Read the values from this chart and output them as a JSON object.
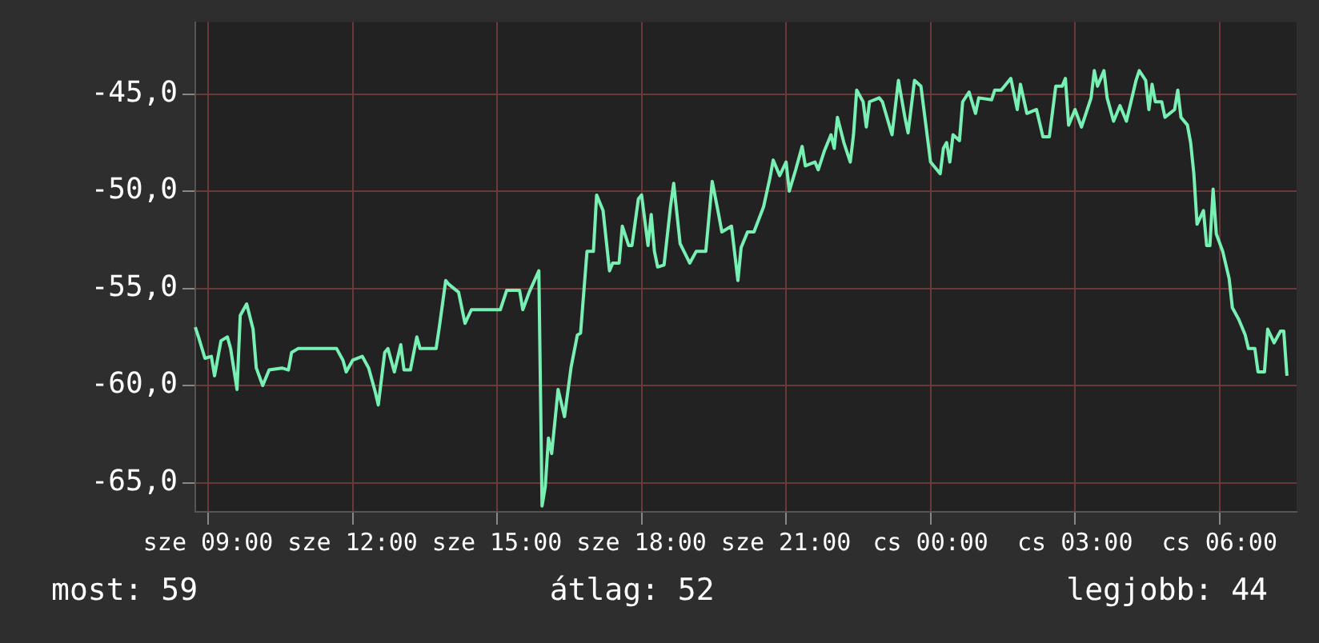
{
  "chart_data": {
    "type": "line",
    "categories": [
      null,
      null,
      null,
      null,
      "sze 09:00",
      null,
      null,
      null,
      null,
      null,
      null,
      null,
      null,
      null,
      null,
      null,
      null,
      null,
      null,
      null,
      null,
      null,
      null,
      null,
      null,
      null,
      null,
      null,
      null,
      null,
      null,
      null,
      null,
      null,
      null,
      null,
      null,
      null,
      null,
      null,
      null,
      null,
      null,
      null,
      null,
      null,
      null,
      null,
      null,
      "sze 12:00",
      null,
      null,
      null,
      null,
      null,
      null,
      null,
      null,
      null,
      null,
      null,
      null,
      null,
      null,
      null,
      null,
      null,
      null,
      null,
      null,
      null,
      null,
      null,
      null,
      null,
      null,
      null,
      null,
      null,
      null,
      null,
      null,
      null,
      null,
      null,
      null,
      null,
      null,
      null,
      null,
      null,
      null,
      null,
      null,
      "sze 15:00",
      null,
      null,
      null,
      null,
      null,
      null,
      null,
      null,
      null,
      null,
      null,
      null,
      null,
      null,
      null,
      null,
      null,
      null,
      null,
      null,
      null,
      null,
      null,
      null,
      null,
      null,
      null,
      null,
      null,
      null,
      null,
      null,
      null,
      null,
      null,
      null,
      null,
      null,
      null,
      null,
      null,
      null,
      null,
      null,
      "sze 18:00",
      null,
      null,
      null,
      null,
      null,
      null,
      null,
      null,
      null,
      null,
      null,
      null,
      null,
      null,
      null,
      null,
      null,
      null,
      null,
      null,
      null,
      null,
      null,
      null,
      null,
      null,
      null,
      null,
      null,
      null,
      null,
      null,
      null,
      null,
      null,
      null,
      null,
      null,
      null,
      null,
      null,
      null,
      null,
      null,
      "sze 21:00",
      null,
      null,
      null,
      null,
      null,
      null,
      null,
      null,
      null,
      null,
      null,
      null,
      null,
      null,
      null,
      null,
      null,
      null,
      null,
      null,
      null,
      null,
      null,
      null,
      null,
      null,
      null,
      null,
      null,
      null,
      null,
      null,
      null,
      null,
      null,
      null,
      null,
      null,
      null,
      null,
      null,
      null,
      null,
      null,
      "cs 00:00",
      null,
      null,
      null,
      null,
      null,
      null,
      null,
      null,
      null,
      null,
      null,
      null,
      null,
      null,
      null,
      null,
      null,
      null,
      null,
      null,
      null,
      null,
      null,
      null,
      null,
      null,
      null,
      null,
      null,
      null,
      null,
      null,
      null,
      null,
      null,
      null,
      null,
      null,
      null,
      null,
      null,
      null,
      null,
      null,
      "cs 03:00",
      null,
      null,
      null,
      null,
      null,
      null,
      null,
      null,
      null,
      null,
      null,
      null,
      null,
      null,
      null,
      null,
      null,
      null,
      null,
      null,
      null,
      null,
      null,
      null,
      null,
      null,
      null,
      null,
      null,
      null,
      null,
      null,
      null,
      null,
      null,
      null,
      null,
      null,
      null,
      null,
      null,
      null,
      null,
      null,
      "cs 06:00",
      null,
      null,
      null,
      null,
      null,
      null,
      null,
      null,
      null,
      null,
      null,
      null,
      null,
      null,
      null,
      null,
      null,
      null,
      null,
      null,
      null,
      null,
      null,
      null
    ],
    "series": [
      {
        "color": "#78f0b4",
        "values": [
          -57.0,
          -57.5,
          null,
          -58.6,
          null,
          -58.5,
          -59.5,
          null,
          -57.7,
          null,
          -57.5,
          -58.1,
          null,
          -60.2,
          -56.4,
          null,
          -55.8,
          null,
          -57.1,
          -59.1,
          null,
          -60.0,
          null,
          -59.2,
          null,
          null,
          null,
          -59.1,
          null,
          -59.2,
          -58.3,
          null,
          -58.1,
          null,
          null,
          null,
          null,
          null,
          null,
          null,
          null,
          null,
          null,
          null,
          -58.1,
          null,
          -58.7,
          -59.3,
          null,
          -58.7,
          null,
          null,
          -58.5,
          null,
          -59.1,
          null,
          -60.3,
          -61.0,
          null,
          -58.3,
          -58.1,
          null,
          -59.3,
          null,
          -57.9,
          -59.2,
          null,
          -59.2,
          null,
          -57.5,
          -58.1,
          null,
          null,
          null,
          null,
          -58.1,
          -57.0,
          null,
          -54.6,
          -54.8,
          null,
          null,
          -55.2,
          null,
          -56.8,
          null,
          -56.1,
          null,
          null,
          null,
          null,
          null,
          null,
          null,
          null,
          -56.1,
          null,
          -55.1,
          null,
          null,
          null,
          -55.1,
          -56.1,
          null,
          -55.2,
          null,
          null,
          -54.1,
          -66.2,
          -65.2,
          -62.7,
          -63.5,
          null,
          -60.2,
          null,
          -61.6,
          null,
          -59.1,
          null,
          -57.4,
          -57.3,
          null,
          -53.1,
          null,
          -53.1,
          -50.2,
          null,
          -51.0,
          null,
          -54.1,
          -53.7,
          null,
          -53.7,
          -51.8,
          null,
          -52.8,
          -52.8,
          null,
          -50.4,
          -50.2,
          null,
          -52.8,
          -51.2,
          -53.1,
          -53.9,
          null,
          -53.8,
          null,
          -50.8,
          -49.6,
          null,
          -52.7,
          null,
          null,
          -53.7,
          null,
          -53.1,
          null,
          null,
          -53.1,
          null,
          -49.5,
          null,
          -51.2,
          -52.1,
          null,
          null,
          -51.8,
          null,
          -54.6,
          -52.9,
          null,
          -52.1,
          null,
          -52.1,
          null,
          null,
          -50.8,
          null,
          -49.3,
          -48.4,
          null,
          -49.2,
          null,
          -48.5,
          -50.0,
          null,
          -48.9,
          null,
          -47.7,
          -48.7,
          null,
          null,
          -48.5,
          -48.9,
          null,
          -47.9,
          null,
          -47.1,
          -47.8,
          -46.2,
          null,
          -47.5,
          null,
          -48.5,
          -47.1,
          -44.8,
          null,
          -45.4,
          -46.7,
          -45.4,
          null,
          null,
          -45.2,
          -45.4,
          null,
          null,
          -47.1,
          null,
          -44.3,
          null,
          -46.2,
          -47.0,
          null,
          -44.3,
          null,
          -44.6,
          null,
          null,
          -48.5,
          null,
          null,
          -49.1,
          -47.8,
          -47.5,
          -48.5,
          -47.1,
          null,
          -47.4,
          -45.4,
          null,
          -44.9,
          null,
          -46.0,
          -45.2,
          null,
          null,
          null,
          -45.3,
          -44.8,
          null,
          -44.8,
          null,
          null,
          -44.2,
          null,
          -45.8,
          -44.5,
          null,
          -46.0,
          null,
          null,
          -45.8,
          null,
          -47.2,
          null,
          -47.2,
          null,
          -44.6,
          null,
          -44.6,
          -44.2,
          -46.6,
          null,
          -45.8,
          null,
          -46.7,
          null,
          null,
          -45.2,
          -43.8,
          -44.6,
          null,
          -43.8,
          -45.2,
          null,
          -46.4,
          null,
          -45.6,
          null,
          -46.4,
          null,
          null,
          -44.3,
          -43.8,
          null,
          -44.3,
          -45.8,
          -44.5,
          -45.4,
          null,
          -45.4,
          -46.2,
          null,
          null,
          -45.8,
          -44.8,
          -46.2,
          null,
          -46.6,
          -47.5,
          -49.1,
          -51.7,
          null,
          -51.0,
          -52.8,
          -52.8,
          -49.9,
          -52.2,
          null,
          -53.1,
          null,
          -54.5,
          -56.0,
          null,
          -56.6,
          null,
          -57.4,
          -58.1,
          null,
          -58.1,
          -59.3,
          null,
          -59.3,
          -57.1,
          null,
          -57.8,
          null,
          -57.2,
          -57.2,
          -59.5,
          null,
          null,
          null
        ]
      }
    ],
    "ylim": [
      -66.5,
      -41.3
    ],
    "yticks": [
      {
        "value": -65,
        "label": "-65,0"
      },
      {
        "value": -60,
        "label": "-60,0"
      },
      {
        "value": -55,
        "label": "-55,0"
      },
      {
        "value": -50,
        "label": "-50,0"
      },
      {
        "value": -45,
        "label": "-45,0"
      }
    ],
    "grid": true,
    "legend": false,
    "marker": "none",
    "line_style": "solid",
    "annotations": [
      "most: 59",
      "átlag: 52",
      "legjobb: 44"
    ]
  }
}
